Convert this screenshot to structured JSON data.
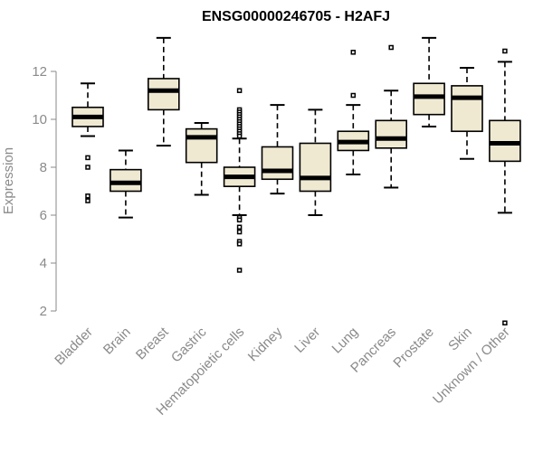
{
  "chart_data": {
    "type": "box",
    "title": "ENSG00000246705 - H2AFJ",
    "xlabel": "",
    "ylabel": "Expression",
    "ylim": [
      1.2,
      13.6
    ],
    "yticks": [
      2,
      4,
      6,
      8,
      10,
      12
    ],
    "box_fill": "#efe9d2",
    "categories": [
      "Bladder",
      "Brain",
      "Breast",
      "Gastric",
      "Hematopoietic cells",
      "Kidney",
      "Liver",
      "Lung",
      "Pancreas",
      "Prostate",
      "Skin",
      "Unknown / Other"
    ],
    "boxes": [
      {
        "min": 9.3,
        "q1": 9.7,
        "median": 10.1,
        "q3": 10.5,
        "max": 11.5,
        "outliers": [
          8.4,
          8.0,
          6.8,
          6.6
        ]
      },
      {
        "min": 5.9,
        "q1": 7.0,
        "median": 7.35,
        "q3": 7.9,
        "max": 8.7,
        "outliers": []
      },
      {
        "min": 8.9,
        "q1": 10.4,
        "median": 11.2,
        "q3": 11.7,
        "max": 13.4,
        "outliers": []
      },
      {
        "min": 6.85,
        "q1": 8.2,
        "median": 9.25,
        "q3": 9.6,
        "max": 9.85,
        "outliers": []
      },
      {
        "min": 6.0,
        "q1": 7.2,
        "median": 7.6,
        "q3": 8.0,
        "max": 9.2,
        "outliers": [
          11.2,
          10.4,
          10.3,
          10.2,
          10.1,
          10.0,
          9.9,
          9.8,
          9.7,
          9.6,
          9.5,
          9.4,
          9.3,
          5.9,
          5.8,
          5.5,
          5.3,
          4.9,
          4.8,
          3.7
        ]
      },
      {
        "min": 6.9,
        "q1": 7.5,
        "median": 7.85,
        "q3": 8.85,
        "max": 10.6,
        "outliers": []
      },
      {
        "min": 6.0,
        "q1": 7.0,
        "median": 7.55,
        "q3": 9.0,
        "max": 10.4,
        "outliers": []
      },
      {
        "min": 7.7,
        "q1": 8.7,
        "median": 9.05,
        "q3": 9.5,
        "max": 10.6,
        "outliers": [
          12.8,
          11.0
        ]
      },
      {
        "min": 7.15,
        "q1": 8.8,
        "median": 9.2,
        "q3": 9.95,
        "max": 11.2,
        "outliers": [
          13.0
        ]
      },
      {
        "min": 9.7,
        "q1": 10.2,
        "median": 10.95,
        "q3": 11.5,
        "max": 13.4,
        "outliers": []
      },
      {
        "min": 8.35,
        "q1": 9.5,
        "median": 10.9,
        "q3": 11.4,
        "max": 12.15,
        "outliers": []
      },
      {
        "min": 6.1,
        "q1": 8.25,
        "median": 9.0,
        "q3": 9.95,
        "max": 12.4,
        "outliers": [
          12.85,
          1.5
        ]
      }
    ]
  }
}
